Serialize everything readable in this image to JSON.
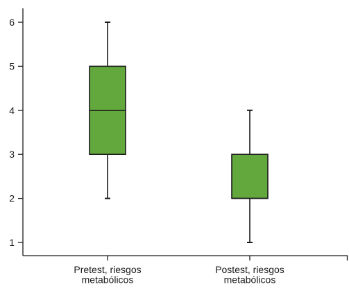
{
  "chart_data": {
    "type": "boxplot",
    "title": "",
    "xlabel": "",
    "ylabel": "",
    "ylim": [
      0.8,
      6.3
    ],
    "yticks": [
      1,
      2,
      3,
      4,
      5,
      6
    ],
    "grid": false,
    "box_color": "#62a83c",
    "categories": [
      [
        "Pretest, riesgos",
        "metabólicos"
      ],
      [
        "Postest, riesgos",
        "metabólicos"
      ]
    ],
    "boxes": [
      {
        "min": 2,
        "q1": 3,
        "median": 4,
        "q3": 5,
        "max": 6
      },
      {
        "min": 1,
        "q1": 2,
        "median": 2,
        "q3": 3,
        "max": 4
      }
    ]
  }
}
